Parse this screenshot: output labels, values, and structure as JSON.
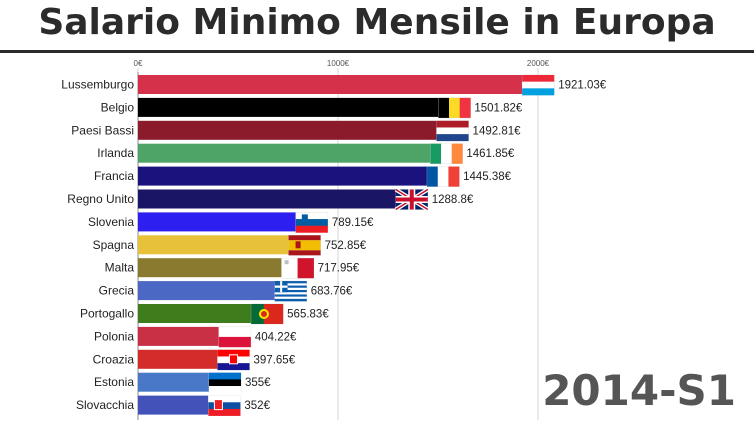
{
  "title": "Salario Minimo Mensile in Europa",
  "period_label": "2014-S1",
  "chart_data": {
    "type": "bar",
    "orientation": "horizontal",
    "title": "Salario Minimo Mensile in Europa",
    "xlim": [
      0,
      2000
    ],
    "x_ticks": [
      0,
      1000,
      2000
    ],
    "x_tick_labels": [
      "0€",
      "1000€",
      "2000€"
    ],
    "grid": true,
    "categories": [
      "Lussemburgo",
      "Belgio",
      "Paesi Bassi",
      "Irlanda",
      "Francia",
      "Regno Unito",
      "Slovenia",
      "Spagna",
      "Malta",
      "Grecia",
      "Portogallo",
      "Polonia",
      "Croazia",
      "Estonia",
      "Slovacchia"
    ],
    "values": [
      1921.03,
      1501.82,
      1492.81,
      1461.85,
      1445.38,
      1288.8,
      789.15,
      752.85,
      717.95,
      683.76,
      565.83,
      404.22,
      397.65,
      355,
      352
    ],
    "value_labels": [
      "1921.03€",
      "1501.82€",
      "1492.81€",
      "1461.85€",
      "1445.38€",
      "1288.8€",
      "789.15€",
      "752.85€",
      "717.95€",
      "683.76€",
      "565.83€",
      "404.22€",
      "397.65€",
      "355€",
      "352€"
    ],
    "bar_colors": [
      "#d5314a",
      "#000000",
      "#8b1a2b",
      "#4ea466",
      "#1a137e",
      "#1a1565",
      "#2d1ff0",
      "#e8c13a",
      "#8a7a30",
      "#4a68c4",
      "#3f7d1c",
      "#c92f45",
      "#d42b2b",
      "#4a78c8",
      "#4352b8"
    ],
    "flags": [
      "luxembourg-flag",
      "belgium-flag",
      "netherlands-flag",
      "ireland-flag",
      "france-flag",
      "uk-flag",
      "slovenia-flag",
      "spain-flag",
      "malta-flag",
      "greece-flag",
      "portugal-flag",
      "poland-flag",
      "croatia-flag",
      "estonia-flag",
      "slovakia-flag"
    ]
  }
}
